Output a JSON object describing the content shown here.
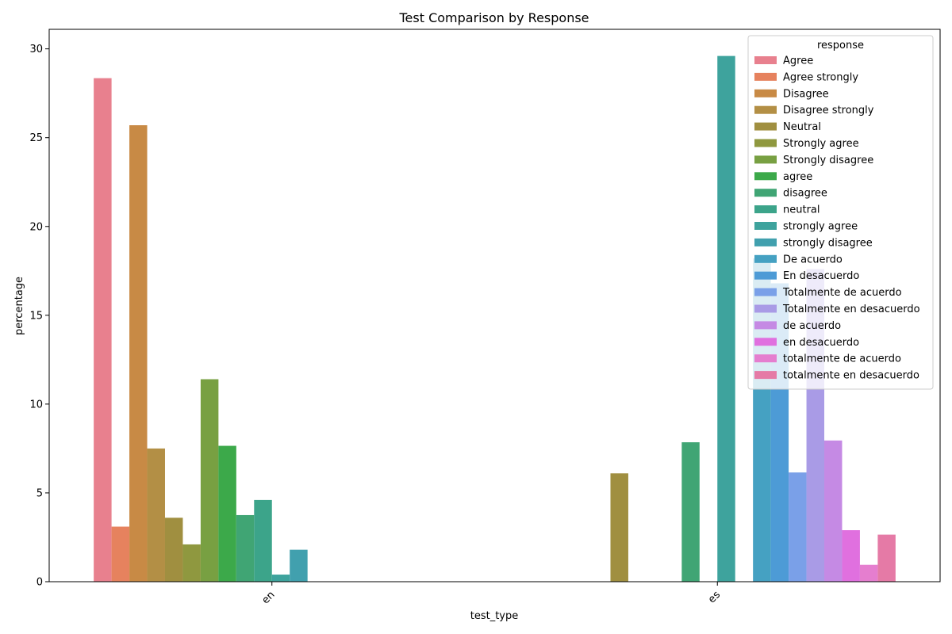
{
  "chart_data": {
    "type": "bar",
    "title": "Test Comparison by Response",
    "xlabel": "test_type",
    "ylabel": "percentage",
    "categories": [
      "en",
      "es"
    ],
    "ylim": [
      0,
      31.1
    ],
    "yticks": [
      0,
      5,
      10,
      15,
      20,
      25,
      30
    ],
    "legend": {
      "title": "response",
      "placement": "top-right"
    },
    "series": [
      {
        "name": "Agree",
        "color": "#e8808e",
        "values": [
          28.35,
          0
        ]
      },
      {
        "name": "Agree strongly",
        "color": "#e6825e",
        "values": [
          3.1,
          0
        ]
      },
      {
        "name": "Disagree",
        "color": "#c88a45",
        "values": [
          25.7,
          0
        ]
      },
      {
        "name": "Disagree strongly",
        "color": "#b38f45",
        "values": [
          7.5,
          0
        ]
      },
      {
        "name": "Neutral",
        "color": "#a08f40",
        "values": [
          3.6,
          6.1
        ]
      },
      {
        "name": "Strongly agree",
        "color": "#8f983f",
        "values": [
          2.1,
          0
        ]
      },
      {
        "name": "Strongly disagree",
        "color": "#78a042",
        "values": [
          11.4,
          0
        ]
      },
      {
        "name": "agree",
        "color": "#3ca94a",
        "values": [
          7.65,
          0
        ]
      },
      {
        "name": "disagree",
        "color": "#40a574",
        "values": [
          3.75,
          7.85
        ]
      },
      {
        "name": "neutral",
        "color": "#3ca48a",
        "values": [
          4.6,
          0
        ]
      },
      {
        "name": "strongly agree",
        "color": "#3ea39d",
        "values": [
          0.4,
          29.6
        ]
      },
      {
        "name": "strongly disagree",
        "color": "#41a0ae",
        "values": [
          1.8,
          0
        ]
      },
      {
        "name": "De acuerdo",
        "color": "#45a1c2",
        "values": [
          0,
          18.2
        ]
      },
      {
        "name": "En desacuerdo",
        "color": "#4d9bd6",
        "values": [
          0,
          16.8
        ]
      },
      {
        "name": "Totalmente de acuerdo",
        "color": "#7aa0e8",
        "values": [
          0,
          6.15
        ]
      },
      {
        "name": "Totalmente en desacuerdo",
        "color": "#a99be6",
        "values": [
          0,
          17.6
        ]
      },
      {
        "name": "de acuerdo",
        "color": "#c58ae4",
        "values": [
          0,
          7.95
        ]
      },
      {
        "name": "en desacuerdo",
        "color": "#e070df",
        "values": [
          0,
          2.9
        ]
      },
      {
        "name": "totalmente de acuerdo",
        "color": "#e57ecf",
        "values": [
          0,
          0.95
        ]
      },
      {
        "name": "totalmente en desacuerdo",
        "color": "#e57aa6",
        "values": [
          0,
          2.65
        ]
      }
    ]
  }
}
